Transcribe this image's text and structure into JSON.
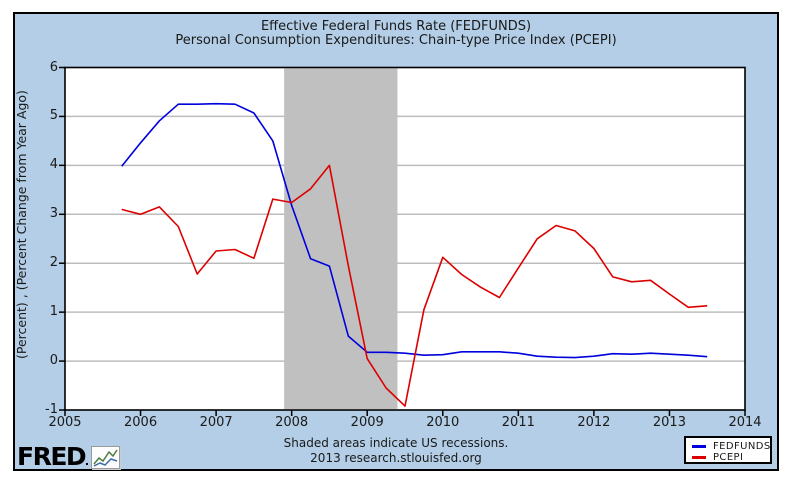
{
  "title": {
    "line1": "Effective Federal Funds Rate (FEDFUNDS)",
    "line2": "Personal Consumption Expenditures: Chain-type Price Index (PCEPI)"
  },
  "footer": {
    "recession_note": "Shaded areas indicate US recessions.",
    "attribution": "2013 research.stlouisfed.org"
  },
  "logo": {
    "text": "FRED",
    "icon": "mini-line-chart-icon"
  },
  "legend": {
    "position": "bottom-right",
    "items": [
      {
        "label": "FEDFUNDS",
        "color": "#0000dd"
      },
      {
        "label": "PCEPI",
        "color": "#dd0000"
      }
    ]
  },
  "colors": {
    "background": "#b3cee6",
    "plot_background": "#ffffff",
    "gridline": "#bdbdbd",
    "recession_shading": "#c0c0c0",
    "axis": "#000000",
    "fedfunds_line": "#0000dd",
    "pcepi_line": "#dd0000",
    "text": "#1a1a1a"
  },
  "chart_data": {
    "type": "line",
    "title": [
      "Effective Federal Funds Rate (FEDFUNDS)",
      "Personal Consumption Expenditures: Chain-type Price Index (PCEPI)"
    ],
    "xlabel": "",
    "ylabel": "(Percent) , (Percent Change from Year Ago)",
    "xlim": [
      2005,
      2014
    ],
    "ylim": [
      -1,
      6
    ],
    "x_ticks": [
      2005,
      2006,
      2007,
      2008,
      2009,
      2010,
      2011,
      2012,
      2013,
      2014
    ],
    "y_ticks": [
      -1,
      0,
      1,
      2,
      3,
      4,
      5,
      6
    ],
    "gridlines_y": [
      0,
      1,
      2,
      3,
      4,
      5
    ],
    "grid": true,
    "legend_position": "bottom-right",
    "recession_bands": [
      {
        "start": 2007.9,
        "end": 2009.4
      }
    ],
    "x": [
      2005.75,
      2006.0,
      2006.25,
      2006.5,
      2006.75,
      2007.0,
      2007.25,
      2007.5,
      2007.75,
      2008.0,
      2008.25,
      2008.5,
      2008.75,
      2009.0,
      2009.25,
      2009.5,
      2009.75,
      2010.0,
      2010.25,
      2010.5,
      2010.75,
      2011.0,
      2011.25,
      2011.5,
      2011.75,
      2012.0,
      2012.25,
      2012.5,
      2012.75,
      2013.0,
      2013.25,
      2013.5
    ],
    "series": [
      {
        "name": "FEDFUNDS",
        "color": "#0000dd",
        "values": [
          3.98,
          4.46,
          4.91,
          5.25,
          5.25,
          5.26,
          5.25,
          5.07,
          4.5,
          3.18,
          2.09,
          1.94,
          0.51,
          0.18,
          0.18,
          0.16,
          0.12,
          0.13,
          0.19,
          0.19,
          0.19,
          0.16,
          0.1,
          0.08,
          0.07,
          0.1,
          0.15,
          0.14,
          0.16,
          0.14,
          0.12,
          0.09
        ]
      },
      {
        "name": "PCEPI",
        "color": "#dd0000",
        "values": [
          3.1,
          3.0,
          3.15,
          2.75,
          1.78,
          2.25,
          2.28,
          2.1,
          3.31,
          3.24,
          3.52,
          4.0,
          1.95,
          0.05,
          -0.55,
          -0.92,
          1.05,
          2.12,
          1.77,
          1.51,
          1.3,
          1.9,
          2.5,
          2.77,
          2.66,
          2.3,
          1.72,
          1.62,
          1.65,
          1.37,
          1.1,
          1.13
        ]
      }
    ]
  }
}
